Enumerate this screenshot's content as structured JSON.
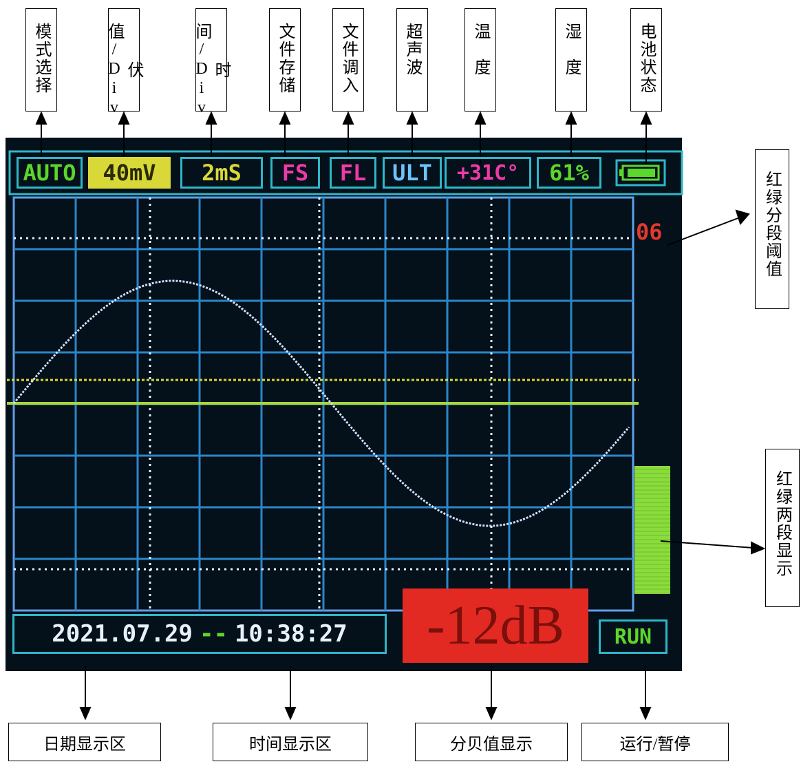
{
  "callouts_top": [
    "模式选择",
    "伏值/Div",
    "时间/Div",
    "文件存储",
    "文件调入",
    "超声波",
    "温　度",
    "湿　度",
    "电池状态"
  ],
  "callouts_right": [
    "红绿分段阈值",
    "红绿两段显示"
  ],
  "callouts_bottom": [
    "日期显示区",
    "时间显示区",
    "分贝值显示",
    "运行/暂停"
  ],
  "status_bar": {
    "mode": "AUTO",
    "volts_div": "40mV",
    "time_div": "2mS",
    "file_save": "FS",
    "file_load": "FL",
    "ultrasonic": "ULT",
    "temperature": "+31C°",
    "humidity": "61%"
  },
  "threshold_value": "06",
  "date": "2021.07.29",
  "separator": "--",
  "time": "10:38:27",
  "decibel": "-12dB",
  "run_state": "RUN",
  "colors": {
    "screen_bg": "#04101a",
    "grid": "#2b86c9",
    "trace": "#cfe0ff",
    "mode": "#5bd62a",
    "volts": "#d8d838",
    "pink": "#ee3aa8",
    "decibel_bg": "#e22a22",
    "bar_green": "#8adb3c"
  }
}
